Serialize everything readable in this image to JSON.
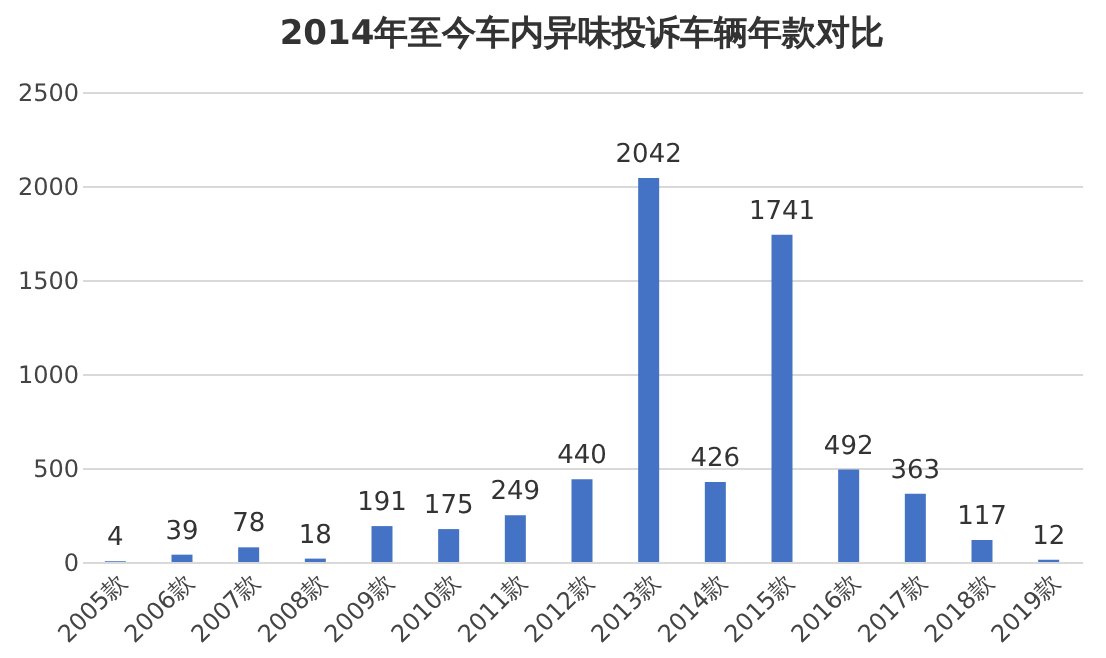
{
  "chart_data": {
    "type": "bar",
    "title": "2014年至今车内异味投诉车辆年款对比",
    "categories": [
      "2005款",
      "2006款",
      "2007款",
      "2008款",
      "2009款",
      "2010款",
      "2011款",
      "2012款",
      "2013款",
      "2014款",
      "2015款",
      "2016款",
      "2017款",
      "2018款",
      "2019款"
    ],
    "values": [
      4,
      39,
      78,
      18,
      191,
      175,
      249,
      440,
      2042,
      426,
      1741,
      492,
      363,
      117,
      12
    ],
    "color": "#4472c4",
    "ylim": [
      0,
      2500
    ],
    "yticks": [
      0,
      500,
      1000,
      1500,
      2000,
      2500
    ],
    "grid": "y",
    "data_labels": true
  }
}
